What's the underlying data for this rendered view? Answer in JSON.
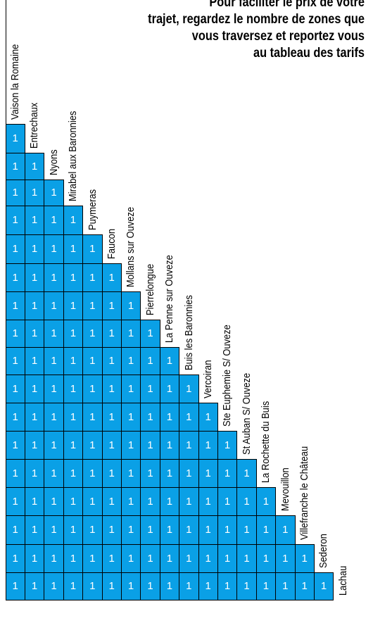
{
  "header": {
    "lines": [
      "Pour faciliter le prix de votre",
      "trajet, regardez le nombre de zones que",
      "vous traversez et reportez vous",
      "au tableau des tarifs"
    ],
    "title_color": "#1a1a1a",
    "accent_color": "#0aa0e6"
  },
  "stops": [
    "Vaison la Romaine",
    "Entrechaux",
    "Nyons",
    "Mirabel aux Baronnies",
    "Puymeras",
    "Faucon",
    "Mollans sur Ouveze",
    "Pierrelongue",
    "La Penne sur Ouveze",
    "Buis les Baronnies",
    "Vercoiran",
    "Ste Euphemie S/ Ouveze",
    "St Auban S/ Ouveze",
    "La Rochette du Buis",
    "Mevouillon",
    "Villefranche le Château",
    "Sederon",
    "Lachau"
  ],
  "zone_value": "1"
}
